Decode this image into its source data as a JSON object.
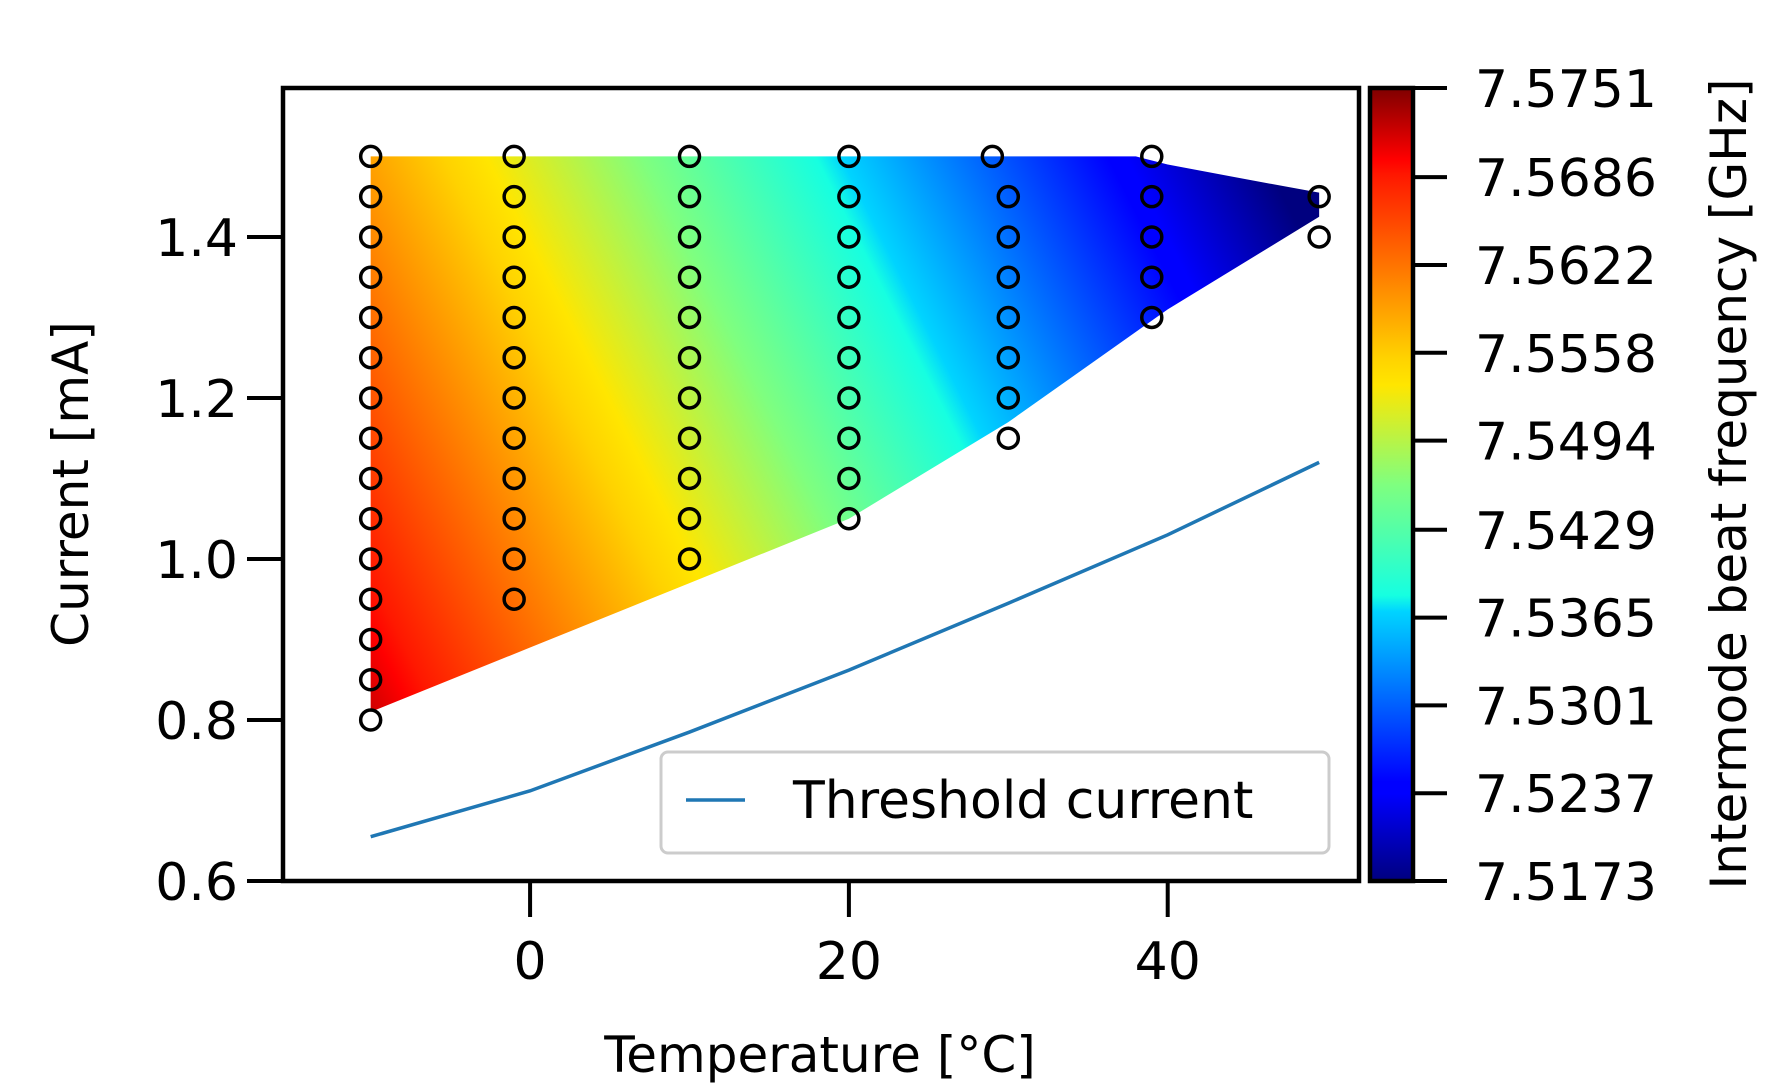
{
  "chart_data": {
    "type": "heatmap",
    "xlabel": "Temperature [°C]",
    "ylabel": "Current [mA]",
    "colorbar_label": "Intermode beat frequency [GHz]",
    "colormap": "jet",
    "xlim": [
      -15.5,
      52
    ],
    "ylim": [
      0.6,
      1.585
    ],
    "x_ticks": [
      0,
      20,
      40
    ],
    "x_tick_labels": [
      "0",
      "20",
      "40"
    ],
    "y_ticks": [
      0.6,
      0.8,
      1.0,
      1.2,
      1.4
    ],
    "y_tick_labels": [
      "0.6",
      "0.8",
      "1.0",
      "1.2",
      "1.4"
    ],
    "colorbar_range": [
      7.5173,
      7.5751
    ],
    "colorbar_ticks": [
      7.5173,
      7.5237,
      7.5301,
      7.5365,
      7.5429,
      7.5494,
      7.5558,
      7.5622,
      7.5686,
      7.5751
    ],
    "colorbar_tick_labels": [
      "7.5173",
      "7.5237",
      "7.5301",
      "7.5365",
      "7.5429",
      "7.5494",
      "7.5558",
      "7.5622",
      "7.5686",
      "7.5751"
    ],
    "filled_region_lower_boundary": {
      "x": [
        -10,
        0,
        10,
        20,
        30,
        40,
        49.5
      ],
      "y": [
        0.81,
        0.89,
        0.97,
        1.05,
        1.17,
        1.31,
        1.425
      ]
    },
    "filled_region_upper_boundary": {
      "x": [
        -10,
        38,
        40,
        44,
        49.5
      ],
      "y": [
        1.5,
        1.5,
        1.49,
        1.475,
        1.455
      ]
    },
    "measurement_points": [
      {
        "x": -10,
        "y": [
          0.8,
          0.85,
          0.9,
          0.95,
          1.0,
          1.05,
          1.1,
          1.15,
          1.2,
          1.25,
          1.3,
          1.35,
          1.4,
          1.45,
          1.5
        ]
      },
      {
        "x": -1,
        "y": [
          0.95,
          1.0,
          1.05,
          1.1,
          1.15,
          1.2,
          1.25,
          1.3,
          1.35,
          1.4,
          1.45,
          1.5
        ]
      },
      {
        "x": 10,
        "y": [
          1.0,
          1.05,
          1.1,
          1.15,
          1.2,
          1.25,
          1.3,
          1.35,
          1.4,
          1.45,
          1.5
        ]
      },
      {
        "x": 20,
        "y": [
          1.05,
          1.1,
          1.15,
          1.2,
          1.25,
          1.3,
          1.35,
          1.4,
          1.45,
          1.5
        ]
      },
      {
        "x": 29,
        "y": [
          1.5
        ]
      },
      {
        "x": 30,
        "y": [
          1.15,
          1.2,
          1.25,
          1.3,
          1.35,
          1.4,
          1.45
        ]
      },
      {
        "x": 39,
        "y": [
          1.3,
          1.35,
          1.4,
          1.45,
          1.5
        ]
      },
      {
        "x": 49.5,
        "y": [
          1.4,
          1.45
        ]
      }
    ],
    "series": [
      {
        "name": "Threshold current",
        "type": "line",
        "color": "#1f77b4",
        "x": [
          -10,
          0,
          10,
          20,
          30,
          40,
          49.5
        ],
        "y": [
          0.655,
          0.712,
          0.785,
          0.862,
          0.945,
          1.03,
          1.12
        ]
      }
    ],
    "legend": {
      "location": "lower-right",
      "entries": [
        "Threshold current"
      ]
    }
  }
}
